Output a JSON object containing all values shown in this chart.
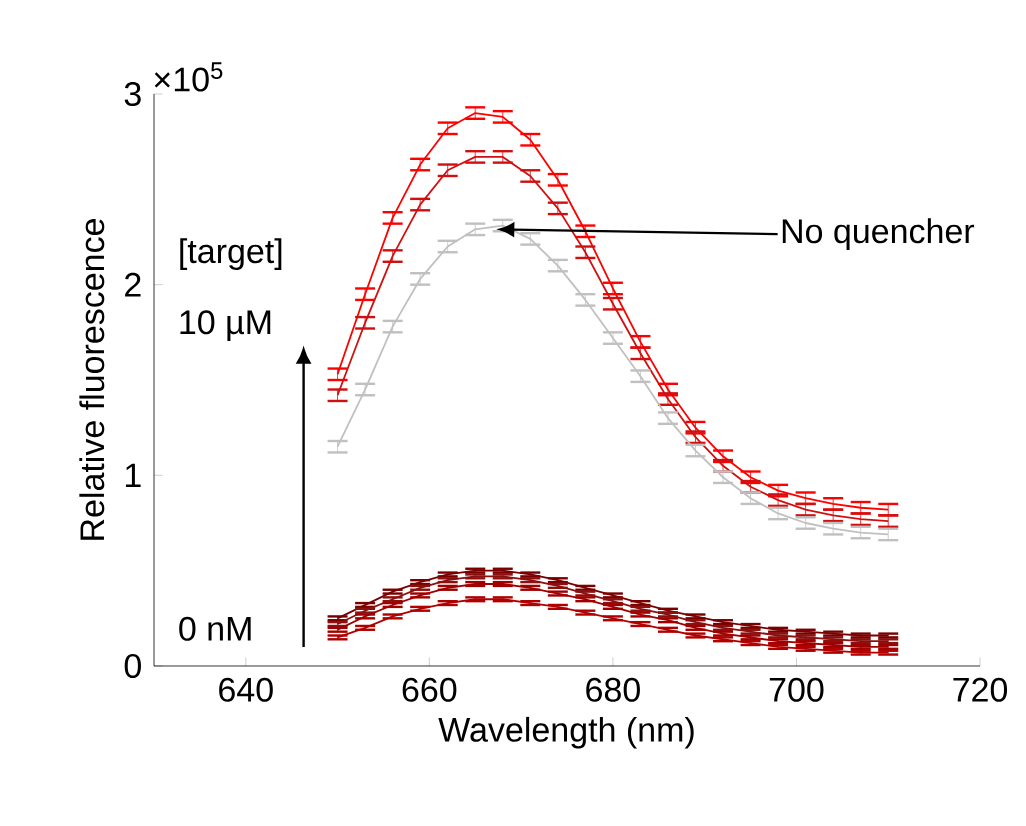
{
  "chart_data": {
    "type": "line",
    "xlabel": "Wavelength (nm)",
    "ylabel": "Relative fluorescence",
    "x": [
      650,
      653,
      656,
      659,
      662,
      665,
      668,
      671,
      674,
      677,
      680,
      683,
      686,
      689,
      692,
      695,
      698,
      701,
      704,
      707,
      710
    ],
    "series": [
      {
        "color": "#ff0000",
        "values": [
          1.53,
          1.95,
          2.35,
          2.63,
          2.82,
          2.9,
          2.88,
          2.76,
          2.55,
          2.28,
          1.98,
          1.7,
          1.45,
          1.25,
          1.1,
          0.99,
          0.92,
          0.88,
          0.85,
          0.83,
          0.82
        ],
        "errors": [
          0.03,
          0.03,
          0.03,
          0.03,
          0.03,
          0.03,
          0.03,
          0.03,
          0.03,
          0.03,
          0.03,
          0.03,
          0.03,
          0.03,
          0.03,
          0.03,
          0.03,
          0.03,
          0.03,
          0.03,
          0.03
        ]
      },
      {
        "color": "#d01010",
        "values": [
          1.42,
          1.8,
          2.15,
          2.42,
          2.6,
          2.67,
          2.67,
          2.57,
          2.4,
          2.17,
          1.9,
          1.64,
          1.4,
          1.2,
          1.05,
          0.94,
          0.87,
          0.82,
          0.79,
          0.77,
          0.76
        ],
        "errors": [
          0.03,
          0.03,
          0.03,
          0.03,
          0.03,
          0.03,
          0.03,
          0.03,
          0.03,
          0.03,
          0.03,
          0.03,
          0.03,
          0.03,
          0.03,
          0.03,
          0.03,
          0.03,
          0.03,
          0.03,
          0.03
        ]
      },
      {
        "color": "#c0c0c0",
        "values": [
          1.15,
          1.45,
          1.78,
          2.03,
          2.2,
          2.29,
          2.31,
          2.24,
          2.1,
          1.92,
          1.72,
          1.52,
          1.3,
          1.13,
          0.99,
          0.88,
          0.8,
          0.75,
          0.72,
          0.7,
          0.69
        ],
        "errors": [
          0.03,
          0.03,
          0.03,
          0.03,
          0.03,
          0.03,
          0.03,
          0.03,
          0.03,
          0.03,
          0.03,
          0.03,
          0.03,
          0.03,
          0.03,
          0.03,
          0.03,
          0.03,
          0.03,
          0.03,
          0.03
        ]
      },
      {
        "color": "#7a0000",
        "values": [
          0.25,
          0.32,
          0.39,
          0.44,
          0.48,
          0.5,
          0.5,
          0.48,
          0.45,
          0.41,
          0.37,
          0.33,
          0.29,
          0.26,
          0.23,
          0.21,
          0.19,
          0.18,
          0.17,
          0.16,
          0.16
        ],
        "errors": [
          0.01,
          0.01,
          0.01,
          0.01,
          0.01,
          0.01,
          0.01,
          0.01,
          0.01,
          0.01,
          0.01,
          0.01,
          0.01,
          0.01,
          0.01,
          0.01,
          0.01,
          0.01,
          0.01,
          0.01,
          0.01
        ]
      },
      {
        "color": "#8b1010",
        "values": [
          0.22,
          0.29,
          0.35,
          0.41,
          0.45,
          0.47,
          0.47,
          0.45,
          0.42,
          0.38,
          0.34,
          0.3,
          0.27,
          0.23,
          0.2,
          0.18,
          0.16,
          0.15,
          0.14,
          0.13,
          0.13
        ],
        "errors": [
          0.01,
          0.01,
          0.01,
          0.01,
          0.01,
          0.01,
          0.01,
          0.01,
          0.01,
          0.01,
          0.01,
          0.01,
          0.01,
          0.01,
          0.01,
          0.01,
          0.01,
          0.01,
          0.01,
          0.01,
          0.01
        ]
      },
      {
        "color": "#a00000",
        "values": [
          0.19,
          0.26,
          0.32,
          0.37,
          0.41,
          0.43,
          0.43,
          0.41,
          0.38,
          0.35,
          0.31,
          0.27,
          0.24,
          0.2,
          0.17,
          0.15,
          0.13,
          0.12,
          0.11,
          0.1,
          0.1
        ],
        "errors": [
          0.01,
          0.01,
          0.01,
          0.01,
          0.01,
          0.01,
          0.01,
          0.01,
          0.01,
          0.01,
          0.01,
          0.01,
          0.01,
          0.01,
          0.01,
          0.01,
          0.01,
          0.01,
          0.01,
          0.01,
          0.01
        ]
      },
      {
        "color": "#b00000",
        "values": [
          0.15,
          0.2,
          0.26,
          0.3,
          0.33,
          0.35,
          0.35,
          0.33,
          0.31,
          0.28,
          0.25,
          0.22,
          0.19,
          0.16,
          0.14,
          0.12,
          0.1,
          0.09,
          0.08,
          0.07,
          0.07
        ],
        "errors": [
          0.01,
          0.01,
          0.01,
          0.01,
          0.01,
          0.01,
          0.01,
          0.01,
          0.01,
          0.01,
          0.01,
          0.01,
          0.01,
          0.01,
          0.01,
          0.01,
          0.01,
          0.01,
          0.01,
          0.01,
          0.01
        ]
      }
    ],
    "xlim": [
      630,
      720
    ],
    "xticks": [
      640,
      660,
      680,
      700,
      720
    ],
    "ylim": [
      0,
      3
    ],
    "yticks": [
      0,
      1,
      2,
      3
    ],
    "marker": "none",
    "line_style": "solid",
    "grid": false,
    "legend": false,
    "annotations": [
      "×10$^{5}$",
      "[target]",
      "10 µM",
      "0 nM",
      {
        "text": "No quencher",
        "x": 667.3,
        "y": 2.29
      }
    ]
  }
}
